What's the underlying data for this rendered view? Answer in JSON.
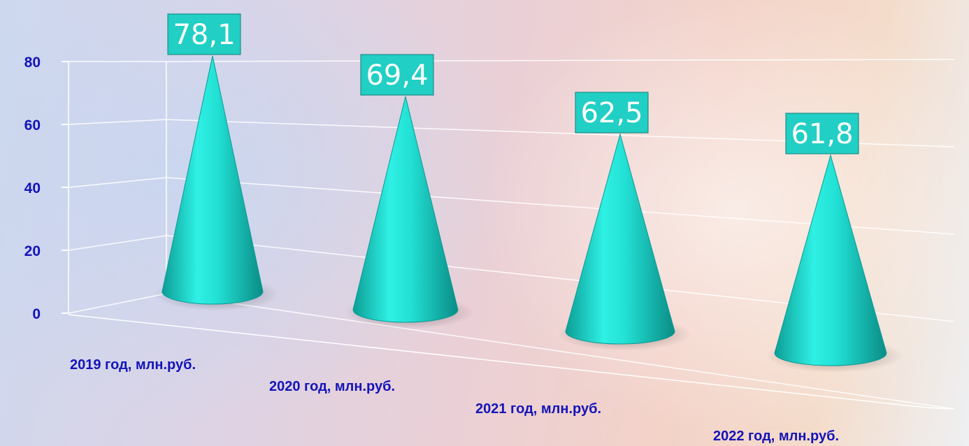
{
  "chart_data": {
    "type": "bar",
    "bar_shape": "cone",
    "three_d": true,
    "categories": [
      "2019 год, млн.руб.",
      "2020 год, млн.руб.",
      "2021 год, млн.руб.",
      "2022 год, млн.руб."
    ],
    "values": [
      78.1,
      69.4,
      62.5,
      61.8
    ],
    "data_labels": [
      "78,1",
      "69,4",
      "62,5",
      "61,8"
    ],
    "yticks": [
      "0",
      "20",
      "40",
      "60",
      "80"
    ],
    "ylim": [
      0,
      80
    ],
    "grid": true,
    "legend": "none"
  },
  "colors": {
    "cone": "#22e0d4",
    "label_box": "#21cfc4",
    "label_text": "#ffffff",
    "axis_text": "#1414b8",
    "grid": "#ffffff"
  }
}
